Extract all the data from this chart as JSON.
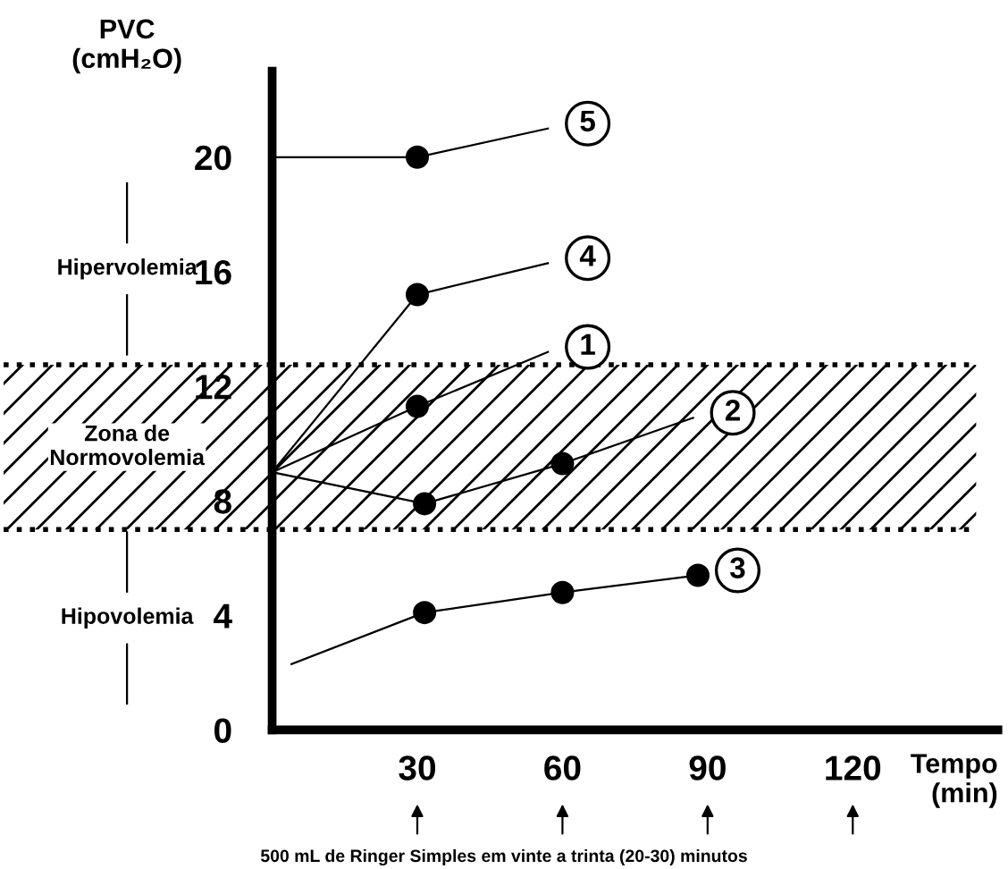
{
  "chart_data": {
    "type": "line",
    "xlabel": "Tempo\n(min)",
    "ylabel": "PVC\n(cmH₂O)",
    "xlim": [
      0,
      150
    ],
    "ylim": [
      0,
      23
    ],
    "xticks": [
      30,
      60,
      90,
      120
    ],
    "yticks": [
      0,
      4,
      8,
      12,
      16,
      20
    ],
    "grid": false,
    "legend": false,
    "line_style": "solid",
    "series": [
      {
        "name": "5",
        "color": "#000000",
        "x": [
          0,
          30,
          57
        ],
        "values": [
          20,
          20,
          21
        ]
      },
      {
        "name": "4",
        "color": "#000000",
        "x": [
          0,
          30,
          57
        ],
        "values": [
          9,
          15.2,
          16.3
        ]
      },
      {
        "name": "1",
        "color": "#000000",
        "x": [
          0,
          30,
          57
        ],
        "values": [
          9,
          11.3,
          13.2
        ]
      },
      {
        "name": "2",
        "color": "#000000",
        "x": [
          0,
          31.5,
          60,
          87
        ],
        "values": [
          9,
          7.9,
          9.3,
          10.9
        ]
      },
      {
        "name": "3",
        "color": "#000000",
        "x": [
          4,
          31.5,
          60,
          88
        ],
        "values": [
          2.3,
          4.1,
          4.8,
          5.4
        ]
      },
      {
        "type": "scatter",
        "marker": "circle",
        "color": "#000000",
        "x": [
          30,
          30,
          30,
          31.5,
          60,
          31.5,
          60,
          88
        ],
        "values": [
          20,
          15.2,
          11.3,
          7.9,
          9.3,
          4.1,
          4.8,
          5.4
        ]
      }
    ],
    "bands": [
      {
        "axis": "y",
        "from": 7,
        "to": 12.75,
        "label": "Zona de\nNormovolemia",
        "color": "#000000"
      }
    ],
    "ref_lines": [
      {
        "axis": "y",
        "value": 7,
        "line_style": "dotted",
        "color": "#000000"
      },
      {
        "axis": "y",
        "value": 12.75,
        "line_style": "dotted",
        "color": "#000000"
      }
    ],
    "annotations": [
      "Hipervolemia",
      "Hipovolemia",
      "500 mL de Ringer Simples em vinte a trinta (20-30) minutos"
    ]
  }
}
